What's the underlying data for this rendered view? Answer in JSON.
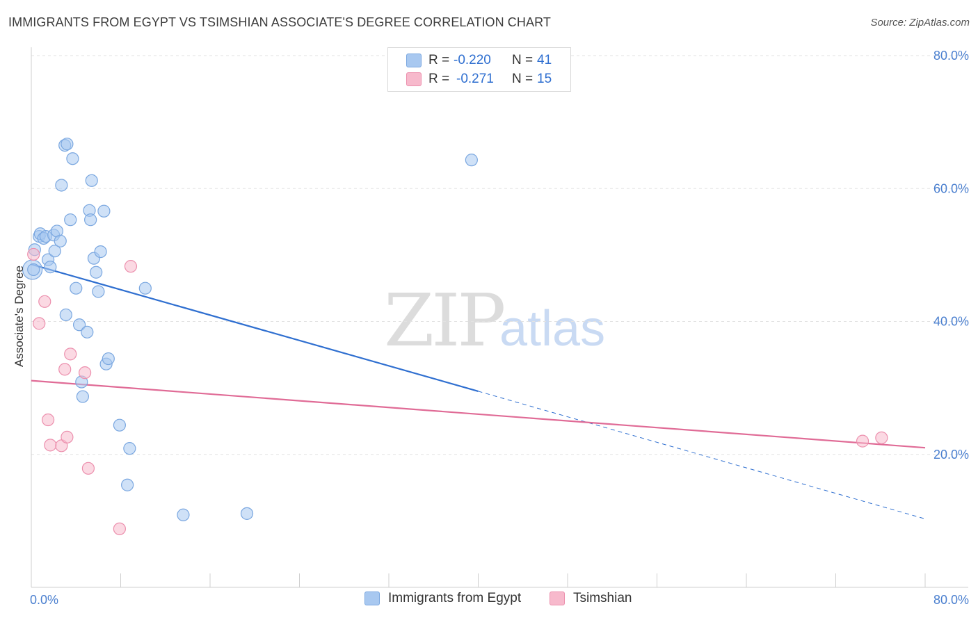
{
  "header": {
    "title": "IMMIGRANTS FROM EGYPT VS TSIMSHIAN ASSOCIATE'S DEGREE CORRELATION CHART",
    "source": "Source: ZipAtlas.com"
  },
  "watermark": {
    "zip": "ZIP",
    "atlas": "atlas"
  },
  "legend_top": {
    "rows": [
      {
        "r_label": "R =",
        "r_value": "-0.220",
        "n_label": "N =",
        "n_value": "41",
        "color": "#a8c8f0",
        "border": "#7aa7e0"
      },
      {
        "r_label": "R =",
        "r_value": "-0.271",
        "n_label": "N =",
        "n_value": "15",
        "color": "#f7b9cc",
        "border": "#ec8fad"
      }
    ]
  },
  "legend_bottom": {
    "egypt": "Immigrants from Egypt",
    "tsimshian": "Tsimshian"
  },
  "chart_data": {
    "type": "scatter",
    "title": "IMMIGRANTS FROM EGYPT VS TSIMSHIAN ASSOCIATE'S DEGREE CORRELATION CHART",
    "xlabel": "",
    "ylabel": "Associate's Degree",
    "xlim": [
      0,
      80
    ],
    "ylim": [
      0,
      80
    ],
    "x_tick_labels": [
      "0.0%",
      "80.0%"
    ],
    "y_ticks": [
      20,
      40,
      60,
      80
    ],
    "y_tick_labels": [
      "20.0%",
      "40.0%",
      "60.0%",
      "80.0%"
    ],
    "grid": true,
    "legend_position": "top-center",
    "series": [
      {
        "name": "Immigrants from Egypt",
        "color": "#a8c8f0",
        "edge": "#7aa7e0",
        "trend_color": "#2f6fd0",
        "trend": {
          "x0": 0,
          "y0": 48.6,
          "x1": 40,
          "y1": 29.5,
          "dash_to_x": 80,
          "dash_to_y": 10.3
        },
        "points": [
          [
            0.1,
            47.8
          ],
          [
            0.3,
            50.8
          ],
          [
            0.7,
            52.8
          ],
          [
            0.8,
            53.2
          ],
          [
            1.1,
            52.5
          ],
          [
            1.3,
            52.8
          ],
          [
            1.5,
            49.3
          ],
          [
            1.7,
            48.2
          ],
          [
            2.0,
            53.0
          ],
          [
            2.1,
            50.6
          ],
          [
            2.3,
            53.6
          ],
          [
            2.6,
            52.1
          ],
          [
            2.7,
            60.5
          ],
          [
            3.0,
            66.5
          ],
          [
            3.2,
            66.7
          ],
          [
            3.1,
            41.0
          ],
          [
            3.5,
            55.3
          ],
          [
            3.7,
            64.5
          ],
          [
            4.0,
            45.0
          ],
          [
            4.3,
            39.5
          ],
          [
            4.5,
            30.9
          ],
          [
            4.6,
            28.7
          ],
          [
            5.0,
            38.4
          ],
          [
            5.2,
            56.7
          ],
          [
            5.3,
            55.3
          ],
          [
            5.4,
            61.2
          ],
          [
            5.6,
            49.5
          ],
          [
            5.8,
            47.4
          ],
          [
            6.0,
            44.5
          ],
          [
            6.2,
            50.5
          ],
          [
            6.5,
            56.6
          ],
          [
            6.7,
            33.6
          ],
          [
            6.9,
            34.4
          ],
          [
            7.9,
            24.4
          ],
          [
            8.8,
            20.9
          ],
          [
            8.6,
            15.4
          ],
          [
            10.2,
            45.0
          ],
          [
            13.6,
            10.9
          ],
          [
            19.3,
            11.1
          ],
          [
            39.4,
            64.3
          ],
          [
            0.2,
            47.8
          ]
        ]
      },
      {
        "name": "Tsimshian",
        "color": "#f7b9cc",
        "edge": "#ec8fad",
        "trend_color": "#e06b96",
        "trend": {
          "x0": 0,
          "y0": 31.1,
          "x1": 80,
          "y1": 21.0
        },
        "points": [
          [
            0.2,
            50.1
          ],
          [
            0.7,
            39.7
          ],
          [
            1.2,
            43.0
          ],
          [
            1.5,
            25.2
          ],
          [
            1.7,
            21.4
          ],
          [
            2.7,
            21.3
          ],
          [
            3.0,
            32.8
          ],
          [
            3.2,
            22.6
          ],
          [
            3.5,
            35.1
          ],
          [
            4.8,
            32.3
          ],
          [
            5.1,
            17.9
          ],
          [
            7.9,
            8.8
          ],
          [
            8.9,
            48.3
          ],
          [
            74.4,
            22.0
          ],
          [
            76.1,
            22.5
          ]
        ]
      }
    ]
  }
}
